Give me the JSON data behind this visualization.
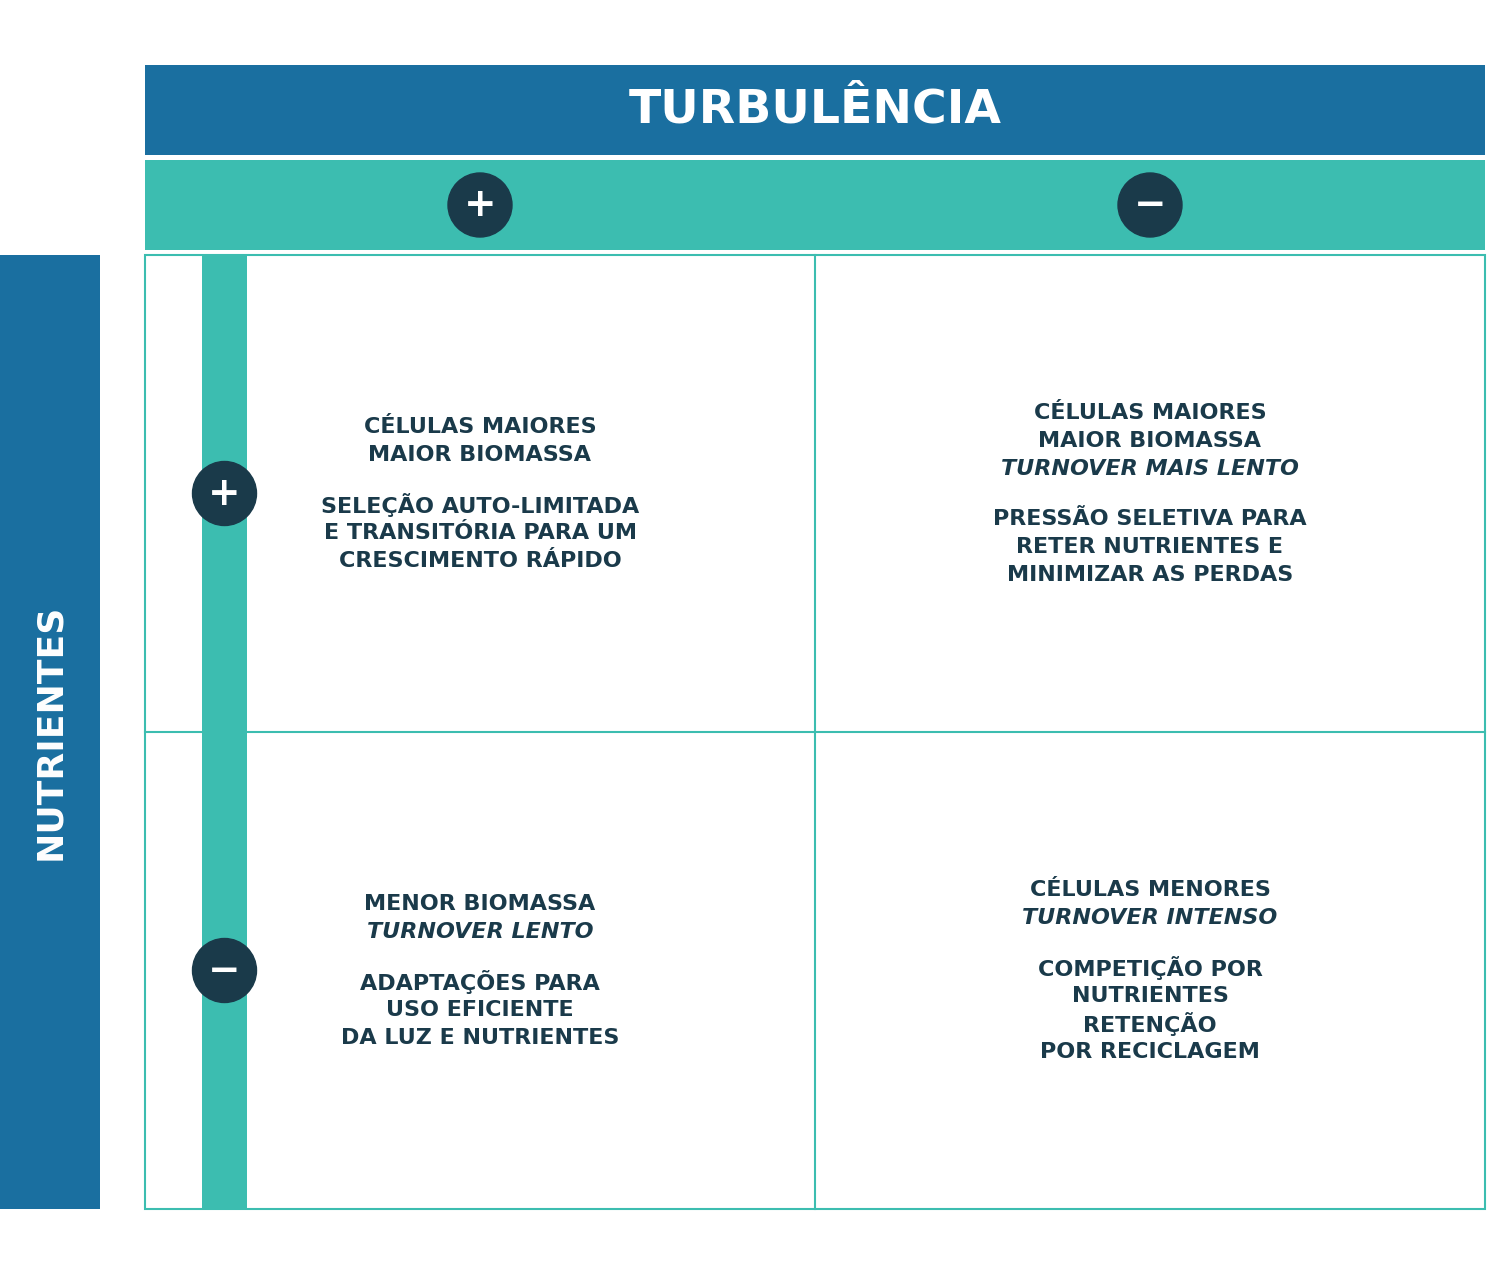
{
  "title": "TURBULÊNCIA",
  "side_label": "NUTRIENTES",
  "dark_blue": "#1a6fa0",
  "teal": "#3cbdb0",
  "dark_text": "#1a3a4a",
  "white": "#ffffff",
  "bg": "#ffffff",
  "cell_border": "#3cbdb0",
  "circle_color": "#1a3a4a",
  "cells": [
    {
      "row": 0,
      "col": 0,
      "blocks": [
        [
          {
            "text": "CÉLULAS MAIORES",
            "italic": false
          },
          {
            "text": "MAIOR BIOMASSA",
            "italic": false
          }
        ],
        [
          {
            "text": "SELEÇÃO AUTO-LIMITADA",
            "italic": false
          },
          {
            "text": "E TRANSITÓRIA PARA UM",
            "italic": false
          },
          {
            "text": "CRESCIMENTO RÁPIDO",
            "italic": false
          }
        ]
      ]
    },
    {
      "row": 0,
      "col": 1,
      "blocks": [
        [
          {
            "text": "CÉLULAS MAIORES",
            "italic": false
          },
          {
            "text": "MAIOR BIOMASSA",
            "italic": false
          },
          {
            "text": "TURNOVER MAIS LENTO",
            "italic": true
          }
        ],
        [
          {
            "text": "PRESSÃO SELETIVA PARA",
            "italic": false
          },
          {
            "text": "RETER NUTRIENTES E",
            "italic": false
          },
          {
            "text": "MINIMIZAR AS PERDAS",
            "italic": false
          }
        ]
      ]
    },
    {
      "row": 1,
      "col": 0,
      "blocks": [
        [
          {
            "text": "MENOR BIOMASSA",
            "italic": false
          },
          {
            "text": "TURNOVER LENTO",
            "italic": true
          }
        ],
        [
          {
            "text": "ADAPTAÇÕES PARA",
            "italic": false
          },
          {
            "text": "USO EFICIENTE",
            "italic": false
          },
          {
            "text": "DA LUZ E NUTRIENTES",
            "italic": false
          }
        ]
      ]
    },
    {
      "row": 1,
      "col": 1,
      "blocks": [
        [
          {
            "text": "CÉLULAS MENORES",
            "italic": false
          },
          {
            "text": "TURNOVER INTENSO",
            "italic": true
          }
        ],
        [
          {
            "text": "COMPETIÇÃO POR",
            "italic": false
          },
          {
            "text": "NUTRIENTES",
            "italic": false
          },
          {
            "text": "RETENÇÃO",
            "italic": false
          },
          {
            "text": "POR RECICLAGEM",
            "italic": false
          }
        ]
      ]
    }
  ]
}
